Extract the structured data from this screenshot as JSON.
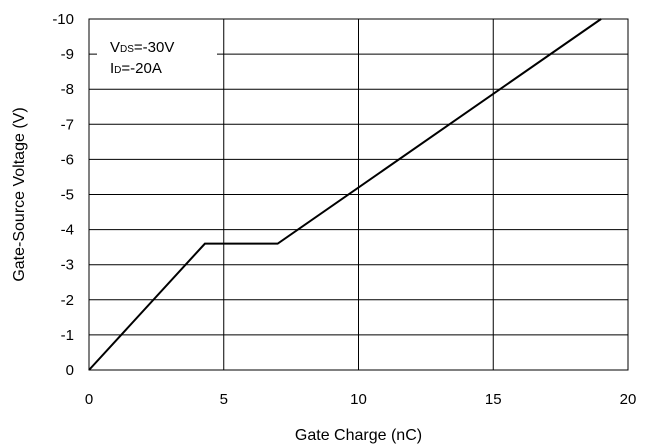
{
  "chart_data": {
    "type": "line",
    "xlabel": "Gate Charge (nC)",
    "ylabel": "Gate-Source Voltage (V)",
    "xlim": [
      0,
      20
    ],
    "ylim": [
      0,
      -10
    ],
    "x_ticks": [
      "0",
      "5",
      "10",
      "15",
      "20"
    ],
    "y_ticks": [
      "0",
      "-1",
      "-2",
      "-3",
      "-4",
      "-5",
      "-6",
      "-7",
      "-8",
      "-9",
      "-10"
    ],
    "grid": true,
    "series": [
      {
        "x": [
          0,
          4.3,
          7.0,
          19.0
        ],
        "y": [
          0,
          -3.6,
          -3.6,
          -10.0
        ]
      }
    ],
    "annotations": [
      {
        "main": "V",
        "sub": "DS",
        "rest": "=-30V"
      },
      {
        "main": "I",
        "sub": "D",
        "rest": "=-20A"
      }
    ]
  }
}
